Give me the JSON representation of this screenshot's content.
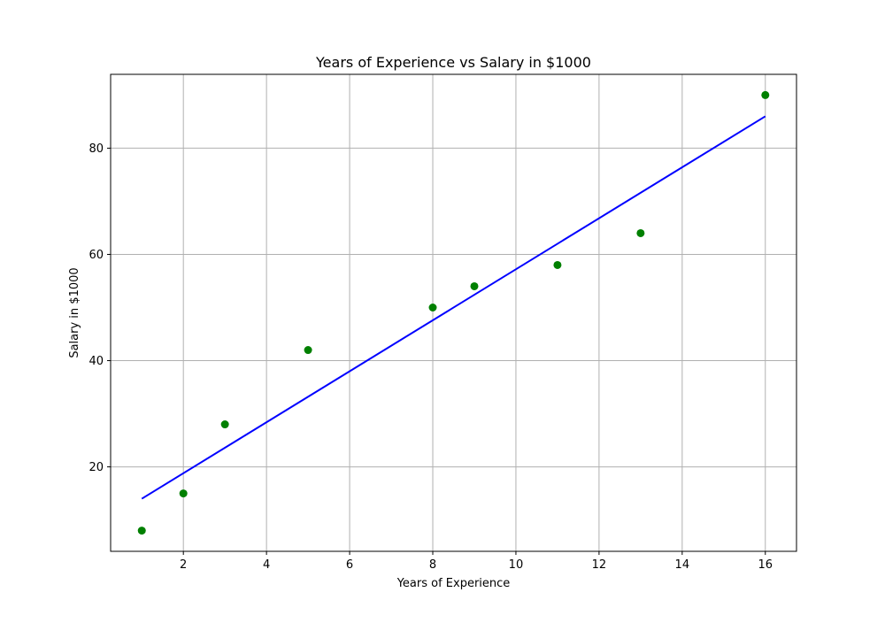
{
  "chart_data": {
    "type": "scatter",
    "title": "Years of Experience vs Salary in $1000",
    "xlabel": "Years of Experience",
    "ylabel": "Salary in $1000",
    "xlim": [
      0.25,
      16.75
    ],
    "ylim": [
      4.1,
      93.9
    ],
    "xticks": [
      2,
      4,
      6,
      8,
      10,
      12,
      14,
      16
    ],
    "yticks": [
      20,
      40,
      60,
      80
    ],
    "grid": true,
    "series": [
      {
        "kind": "scatter",
        "color": "#008000",
        "x": [
          1,
          2,
          3,
          5,
          8,
          9,
          11,
          13,
          16
        ],
        "y": [
          8,
          15,
          28,
          42,
          50,
          54,
          58,
          64,
          90
        ]
      },
      {
        "kind": "line",
        "color": "#0000ff",
        "x": [
          1,
          16
        ],
        "y": [
          14,
          86
        ]
      }
    ]
  }
}
